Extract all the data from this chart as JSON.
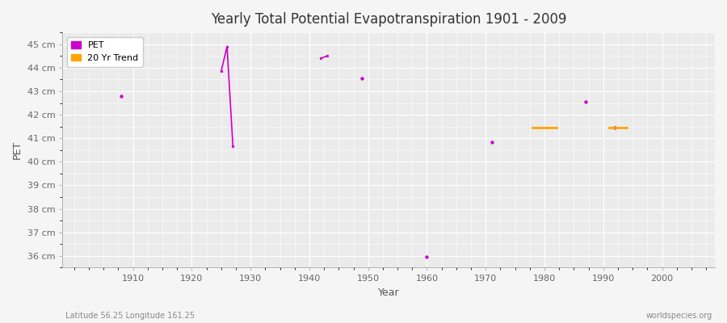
{
  "title": "Yearly Total Potential Evapotranspiration 1901 - 2009",
  "xlabel": "Year",
  "ylabel": "PET",
  "subtitle_left": "Latitude 56.25 Longitude 161.25",
  "subtitle_right": "worldspecies.org",
  "ylim": [
    35.5,
    45.5
  ],
  "xlim": [
    1898,
    2009
  ],
  "yticks": [
    36,
    37,
    38,
    39,
    40,
    41,
    42,
    43,
    44,
    45
  ],
  "ytick_labels": [
    "36 cm",
    "37 cm",
    "38 cm",
    "39 cm",
    "40 cm",
    "41 cm",
    "42 cm",
    "43 cm",
    "44 cm",
    "45 cm"
  ],
  "xticks": [
    1910,
    1920,
    1930,
    1940,
    1950,
    1960,
    1970,
    1980,
    1990,
    2000
  ],
  "pet_color": "#cc00cc",
  "trend_color": "#ffa500",
  "bg_color": "#f5f5f5",
  "plot_bg_color": "#ebebeb",
  "grid_color": "#ffffff",
  "pet_scatter": [
    [
      1908,
      42.8
    ],
    [
      1949,
      43.55
    ],
    [
      1960,
      35.95
    ],
    [
      1971,
      40.85
    ],
    [
      1987,
      42.55
    ],
    [
      1992,
      41.45
    ]
  ],
  "pet_lines": [
    [
      [
        1925,
        43.85
      ],
      [
        1926,
        44.9
      ],
      [
        1927,
        40.65
      ]
    ],
    [
      [
        1942,
        44.4
      ],
      [
        1943,
        44.5
      ]
    ]
  ],
  "trend_dashes": [
    [
      [
        1978,
        41.45
      ],
      [
        1982,
        41.45
      ]
    ],
    [
      [
        1991,
        41.45
      ],
      [
        1994,
        41.45
      ]
    ]
  ]
}
